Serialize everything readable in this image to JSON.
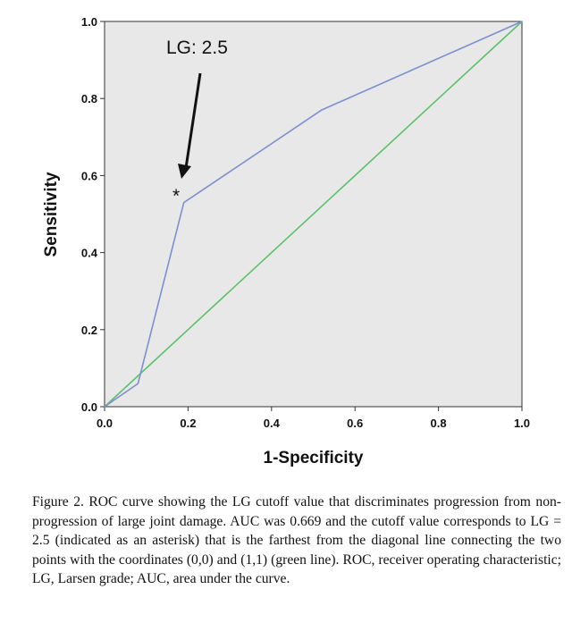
{
  "chart_data": {
    "type": "line",
    "xlabel": "1-Specificity",
    "ylabel": "Sensitivity",
    "xlim": [
      0,
      1
    ],
    "ylim": [
      0,
      1
    ],
    "xticks": [
      "0.0",
      "0.2",
      "0.4",
      "0.6",
      "0.8",
      "1.0"
    ],
    "yticks": [
      "0.0",
      "0.2",
      "0.4",
      "0.6",
      "0.8",
      "1.0"
    ],
    "grid": false,
    "series": [
      {
        "color": "#7b8fd1",
        "points": [
          [
            0,
            0
          ],
          [
            0.08,
            0.06
          ],
          [
            0.19,
            0.53
          ],
          [
            0.52,
            0.77
          ],
          [
            1,
            1
          ]
        ]
      },
      {
        "color": "#5cc26a",
        "points": [
          [
            0,
            0
          ],
          [
            1,
            1
          ]
        ]
      }
    ],
    "annotations": [
      {
        "text": "LG: 2.5",
        "x": 0.19,
        "y": 0.53
      },
      {
        "text": "*",
        "x": 0.19,
        "y": 0.53
      }
    ],
    "plot_background": "#e8e8e8"
  },
  "caption": "Figure 2. ROC curve showing the LG cutoff value that discriminates progression from non-progression of large joint damage. AUC was 0.669 and the cutoff value corresponds to LG = 2.5 (indicated as an asterisk) that is the farthest from the diagonal line connecting the two points with the coordinates (0,0) and (1,1) (green line). ROC, receiver operating characteristic; LG, Larsen grade; AUC, area under the curve."
}
